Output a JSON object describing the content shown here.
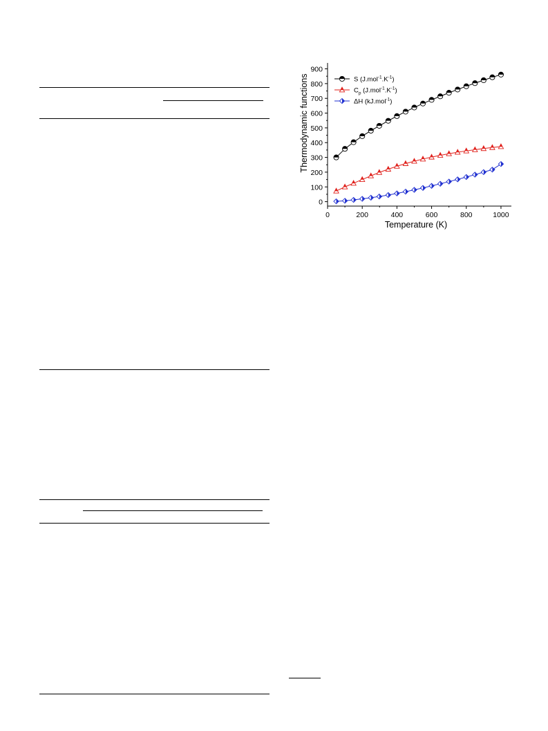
{
  "chart_data": {
    "type": "line",
    "xlabel": "Temperature (K)",
    "ylabel": "Thermodynamic functions",
    "xlim": [
      0,
      1060
    ],
    "ylim": [
      -30,
      940
    ],
    "x_ticks": [
      "0",
      "200",
      "400",
      "600",
      "800",
      "1000"
    ],
    "y_ticks": [
      "0",
      "100",
      "200",
      "300",
      "400",
      "500",
      "600",
      "700",
      "800",
      "900"
    ],
    "legend_position": "top-left",
    "grid": false,
    "x": [
      50,
      100,
      150,
      200,
      250,
      298.15,
      350,
      400,
      450,
      500,
      550,
      600,
      650,
      700,
      750,
      800,
      850,
      900,
      950,
      1000
    ],
    "series": [
      {
        "name": "S (J.mol-1.K-1)",
        "legend_main": "S (J.mol",
        "legend_sup1": "-1",
        "legend_mid": ".K",
        "legend_sup2": "-1",
        "legend_end": ")",
        "color": "#000000",
        "marker": "circle",
        "values": [
          300,
          358,
          403,
          444,
          481,
          514,
          548,
          580,
          610,
          638,
          665,
          690,
          714,
          738,
          760,
          782,
          803,
          823,
          843,
          861
        ]
      },
      {
        "name": "Cp (J.mol-1.K-1)",
        "legend_main": "C",
        "legend_sub": "p",
        "legend_mid": " (J.mol",
        "legend_sup1": "-1",
        "legend_mid2": ".K",
        "legend_sup2": "-1",
        "legend_end": ")",
        "color": "#e0201b",
        "marker": "triangle",
        "values": [
          72,
          100,
          125,
          150,
          175,
          198,
          220,
          240,
          258,
          274,
          289,
          302,
          314,
          325,
          335,
          344,
          352,
          360,
          367,
          373
        ]
      },
      {
        "name": "ΔH (kJ.mol-1)",
        "legend_main": "ΔH (kJ.mol",
        "legend_sup1": "-1",
        "legend_end": ")",
        "color": "#1f2fd0",
        "marker": "diamond",
        "values": [
          2,
          6,
          12,
          19,
          27,
          35,
          45,
          56,
          68,
          80,
          93,
          107,
          121,
          136,
          151,
          167,
          183,
          200,
          217,
          255
        ]
      }
    ]
  }
}
